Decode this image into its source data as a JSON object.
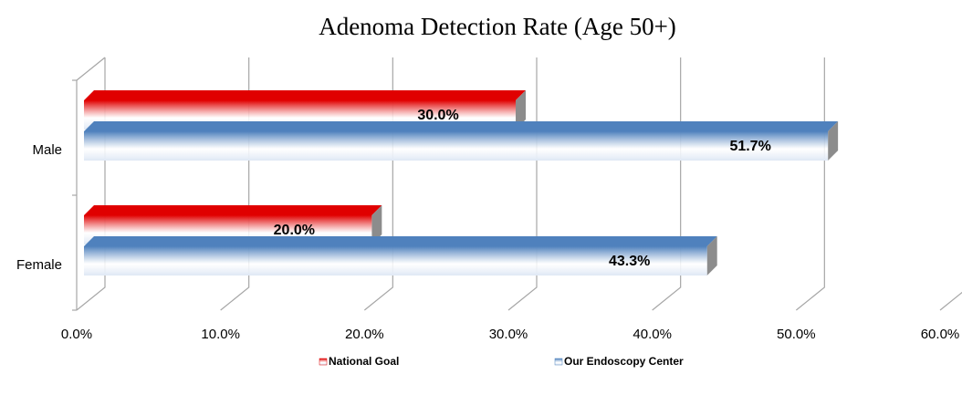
{
  "chart_data": {
    "type": "bar",
    "orientation": "horizontal",
    "title": "Adenoma Detection Rate (Age 50+)",
    "categories": [
      "Male",
      "Female"
    ],
    "series": [
      {
        "name": "National Goal",
        "color": "#e00000",
        "values": [
          30.0,
          20.0
        ],
        "value_labels": [
          "30.0%",
          "20.0%"
        ]
      },
      {
        "name": "Our Endoscopy Center",
        "color": "#4f81bd",
        "values": [
          51.7,
          43.3
        ],
        "value_labels": [
          "51.7%",
          "43.3%"
        ]
      }
    ],
    "xlim": [
      0,
      60
    ],
    "xticks": [
      {
        "value": 0,
        "label": "0.0%"
      },
      {
        "value": 10,
        "label": "10.0%"
      },
      {
        "value": 20,
        "label": "20.0%"
      },
      {
        "value": 30,
        "label": "30.0%"
      },
      {
        "value": 40,
        "label": "40.0%"
      },
      {
        "value": 50,
        "label": "50.0%"
      },
      {
        "value": 60,
        "label": "60.0%"
      }
    ],
    "grid": true,
    "legend": "bottom"
  }
}
